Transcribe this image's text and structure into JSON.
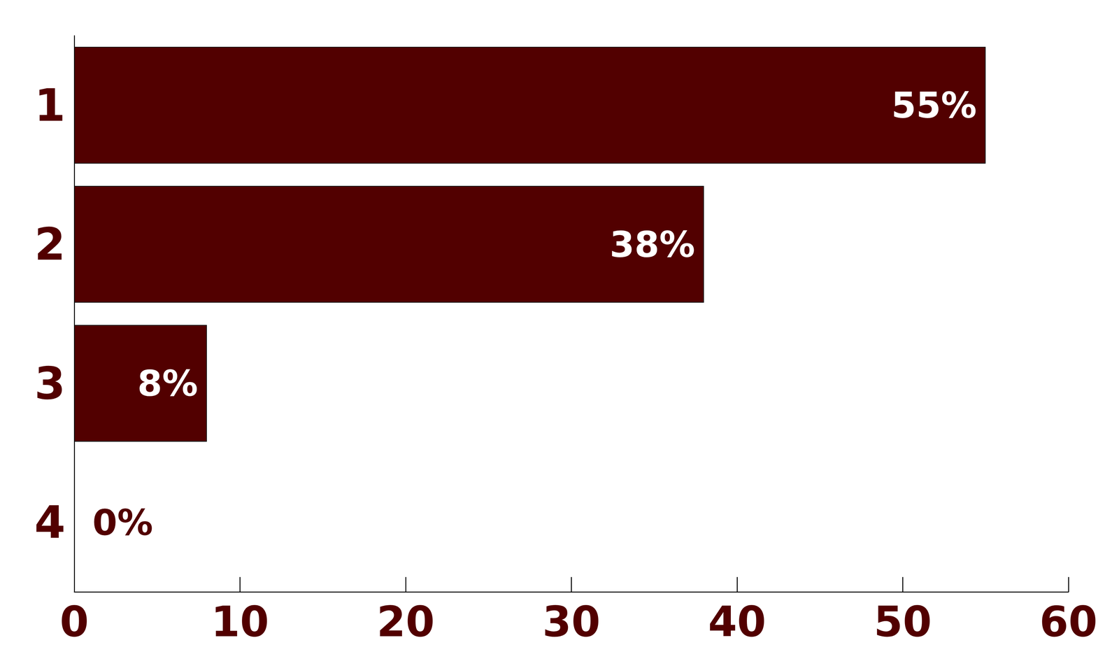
{
  "chart_data": {
    "type": "bar",
    "orientation": "horizontal",
    "categories": [
      "1",
      "2",
      "3",
      "4"
    ],
    "values": [
      55,
      38,
      8,
      0
    ],
    "value_labels": [
      "55%",
      "38%",
      "8%",
      "0%"
    ],
    "color": "#520000",
    "xlim": [
      0,
      60
    ],
    "xticks": [
      0,
      10,
      20,
      30,
      40,
      50,
      60
    ],
    "grid": false,
    "data_labels": true
  }
}
